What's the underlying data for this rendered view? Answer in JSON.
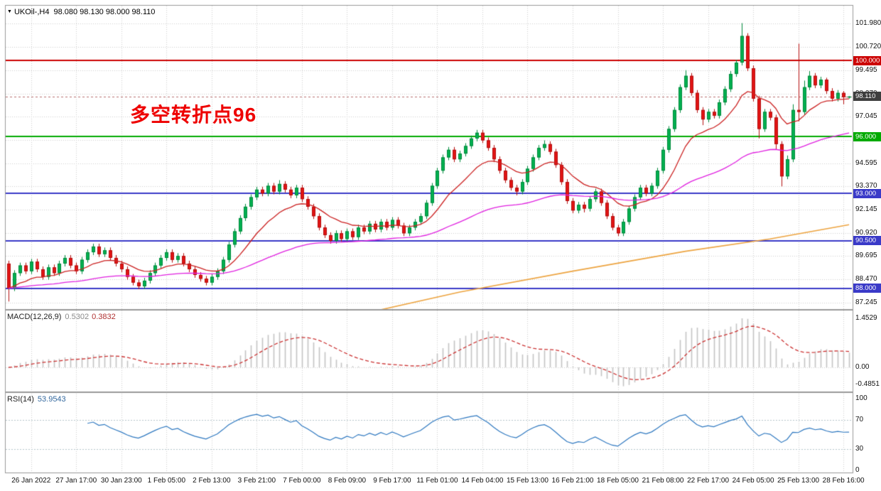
{
  "title": {
    "symbol_timeframe": "UKOil-,H4",
    "ohlc": "98.080 98.130 98.000 98.110"
  },
  "annotation": {
    "text": "多空转折点96",
    "color": "#ee0000"
  },
  "chart_data": {
    "type": "candlestick",
    "symbol": "UKOil-",
    "timeframe": "H4",
    "y_range": [
      86.9,
      102.9
    ],
    "grid": true,
    "x_labels": [
      "26 Jan 2022",
      "27 Jan 17:00",
      "30 Jan 23:00",
      "1 Feb 05:00",
      "2 Feb 13:00",
      "3 Feb 21:00",
      "7 Feb 00:00",
      "8 Feb 09:00",
      "9 Feb 17:00",
      "11 Feb 01:00",
      "14 Feb 04:00",
      "15 Feb 13:00",
      "16 Feb 21:00",
      "18 Feb 05:00",
      "21 Feb 08:00",
      "22 Feb 17:00",
      "24 Feb 05:00",
      "25 Feb 13:00",
      "28 Feb 16:00"
    ],
    "y_ticks": {
      "labels": [
        "101.980",
        "100.720",
        "99.495",
        "98.270",
        "97.045",
        "95.820",
        "94.595",
        "93.370",
        "92.145",
        "90.920",
        "89.695",
        "88.470",
        "87.245"
      ],
      "values": [
        101.98,
        100.72,
        99.495,
        98.27,
        97.045,
        95.82,
        94.595,
        93.37,
        92.145,
        90.92,
        89.695,
        88.47,
        87.245
      ]
    },
    "levels": [
      {
        "price": 100.0,
        "label": "100.000",
        "color": "#cc0000"
      },
      {
        "price": 96.0,
        "label": "96.000",
        "color": "#00aa00"
      },
      {
        "price": 93.0,
        "label": "93.000",
        "color": "#3a3ac8"
      },
      {
        "price": 90.5,
        "label": "90.500",
        "color": "#3a3ac8"
      },
      {
        "price": 88.0,
        "label": "88.000",
        "color": "#3a3ac8"
      }
    ],
    "bid": {
      "price": 98.11,
      "label": "98.110",
      "badge_color": "#3e3e3e"
    },
    "overlays": {
      "ma_fast": {
        "type": "ema",
        "period": 13,
        "color": "#cc2222"
      },
      "ma_mid": {
        "type": "ema",
        "period": 60,
        "color": "#e020e0"
      },
      "ma_slow": {
        "color": "#eda440",
        "points": [
          [
            0,
            83.6
          ],
          [
            40,
            85.1
          ],
          [
            62,
            86.6
          ],
          [
            80,
            87.8
          ],
          [
            100,
            88.9
          ],
          [
            120,
            89.95
          ],
          [
            135,
            90.6
          ],
          [
            149,
            91.35
          ]
        ]
      }
    },
    "indicators": {
      "macd": {
        "name": "MACD(12,26,9)",
        "value_main": "0.5302",
        "value_signal": "0.3832",
        "params": [
          12,
          26,
          9
        ],
        "axis_ticks": [
          "1.4529",
          "0.00",
          "-0.4851"
        ]
      },
      "rsi": {
        "name": "RSI(14)",
        "value": "53.9543",
        "period": 14,
        "axis_ticks": [
          "100",
          "70",
          "30",
          "0"
        ],
        "levels": [
          70,
          30
        ]
      }
    },
    "colors": {
      "candle_up": "#00b050",
      "candle_up_border": "#008a3c",
      "candle_down": "#e21414",
      "candle_down_border": "#b40f0f",
      "macd_hist": "#c4c4c4",
      "macd_signal": "#cc3333",
      "rsi_line": "#2e78c0",
      "bid_line": "#b87070",
      "grid": "#d0d0d0",
      "border": "#9a9a9a"
    },
    "candles": [
      [
        89.3,
        89.45,
        87.3,
        88.0
      ],
      [
        88.0,
        88.95,
        87.85,
        88.8
      ],
      [
        88.8,
        89.35,
        88.65,
        89.2
      ],
      [
        89.2,
        89.35,
        88.75,
        88.9
      ],
      [
        88.9,
        89.55,
        88.75,
        89.4
      ],
      [
        89.4,
        89.55,
        88.85,
        89.0
      ],
      [
        89.0,
        89.15,
        88.45,
        88.6
      ],
      [
        88.6,
        89.25,
        88.45,
        89.1
      ],
      [
        89.1,
        89.25,
        88.65,
        88.8
      ],
      [
        88.8,
        89.45,
        88.65,
        89.3
      ],
      [
        89.3,
        89.75,
        89.15,
        89.6
      ],
      [
        89.6,
        89.75,
        89.05,
        89.2
      ],
      [
        89.2,
        89.35,
        88.75,
        88.9
      ],
      [
        88.9,
        89.65,
        88.75,
        89.5
      ],
      [
        89.5,
        90.05,
        89.35,
        89.9
      ],
      [
        89.9,
        90.35,
        89.75,
        90.2
      ],
      [
        90.2,
        90.35,
        89.65,
        89.8
      ],
      [
        89.8,
        90.15,
        89.65,
        90.0
      ],
      [
        90.0,
        90.15,
        89.45,
        89.6
      ],
      [
        89.6,
        89.75,
        89.15,
        89.3
      ],
      [
        89.3,
        89.45,
        88.85,
        89.0
      ],
      [
        89.0,
        89.15,
        88.45,
        88.6
      ],
      [
        88.6,
        88.75,
        88.15,
        88.3
      ],
      [
        88.3,
        88.45,
        87.95,
        88.1
      ],
      [
        88.1,
        88.55,
        87.95,
        88.4
      ],
      [
        88.4,
        88.95,
        88.25,
        88.8
      ],
      [
        88.8,
        89.35,
        88.65,
        89.2
      ],
      [
        89.2,
        89.75,
        89.05,
        89.6
      ],
      [
        89.6,
        90.05,
        89.45,
        89.9
      ],
      [
        89.9,
        90.05,
        89.35,
        89.5
      ],
      [
        89.5,
        89.85,
        89.35,
        89.7
      ],
      [
        89.7,
        89.85,
        89.15,
        89.3
      ],
      [
        89.3,
        89.45,
        88.85,
        89.0
      ],
      [
        89.0,
        89.15,
        88.55,
        88.7
      ],
      [
        88.7,
        88.85,
        88.35,
        88.5
      ],
      [
        88.5,
        88.65,
        88.15,
        88.3
      ],
      [
        88.3,
        88.75,
        88.15,
        88.6
      ],
      [
        88.6,
        89.05,
        88.45,
        88.9
      ],
      [
        88.9,
        89.65,
        88.75,
        89.5
      ],
      [
        89.5,
        90.45,
        89.35,
        90.3
      ],
      [
        90.3,
        91.15,
        90.15,
        91.0
      ],
      [
        91.0,
        91.85,
        90.85,
        91.7
      ],
      [
        91.7,
        92.45,
        91.55,
        92.3
      ],
      [
        92.3,
        92.95,
        92.15,
        92.8
      ],
      [
        92.8,
        93.35,
        92.65,
        93.2
      ],
      [
        93.2,
        93.35,
        92.85,
        93.0
      ],
      [
        93.0,
        93.55,
        92.85,
        93.4
      ],
      [
        93.4,
        93.55,
        92.95,
        93.1
      ],
      [
        93.1,
        93.7,
        92.95,
        93.5
      ],
      [
        93.5,
        93.65,
        93.05,
        93.2
      ],
      [
        93.2,
        93.35,
        92.75,
        92.9
      ],
      [
        92.9,
        93.45,
        92.75,
        93.3
      ],
      [
        93.3,
        93.45,
        92.55,
        92.7
      ],
      [
        92.7,
        92.85,
        92.15,
        92.3
      ],
      [
        92.3,
        92.45,
        91.65,
        91.8
      ],
      [
        91.8,
        91.95,
        91.05,
        91.2
      ],
      [
        91.2,
        91.35,
        90.65,
        90.8
      ],
      [
        90.8,
        90.95,
        90.35,
        90.5
      ],
      [
        90.5,
        91.05,
        90.35,
        90.9
      ],
      [
        90.9,
        91.05,
        90.45,
        90.6
      ],
      [
        90.6,
        91.15,
        90.45,
        91.0
      ],
      [
        91.0,
        91.15,
        90.55,
        90.7
      ],
      [
        90.7,
        91.35,
        90.55,
        91.2
      ],
      [
        91.2,
        91.35,
        90.85,
        91.0
      ],
      [
        91.0,
        91.55,
        90.85,
        91.4
      ],
      [
        91.4,
        91.55,
        90.95,
        91.1
      ],
      [
        91.1,
        91.65,
        90.95,
        91.5
      ],
      [
        91.5,
        91.65,
        91.05,
        91.2
      ],
      [
        91.2,
        91.75,
        91.05,
        91.6
      ],
      [
        91.6,
        91.75,
        91.15,
        91.3
      ],
      [
        91.3,
        91.45,
        90.75,
        90.9
      ],
      [
        90.9,
        91.35,
        90.75,
        91.2
      ],
      [
        91.2,
        91.65,
        91.05,
        91.5
      ],
      [
        91.5,
        91.95,
        91.35,
        91.8
      ],
      [
        91.8,
        92.65,
        91.65,
        92.5
      ],
      [
        92.5,
        93.55,
        92.35,
        93.4
      ],
      [
        93.4,
        94.35,
        93.25,
        94.2
      ],
      [
        94.2,
        95.05,
        94.05,
        94.9
      ],
      [
        94.9,
        95.45,
        94.75,
        95.3
      ],
      [
        95.3,
        95.45,
        94.65,
        94.8
      ],
      [
        94.8,
        95.25,
        94.65,
        95.1
      ],
      [
        95.1,
        95.65,
        94.95,
        95.5
      ],
      [
        95.5,
        96.05,
        95.35,
        95.9
      ],
      [
        95.9,
        96.35,
        95.75,
        96.2
      ],
      [
        96.2,
        96.35,
        95.65,
        95.8
      ],
      [
        95.8,
        95.95,
        95.25,
        95.4
      ],
      [
        95.4,
        95.55,
        94.65,
        94.8
      ],
      [
        94.8,
        94.95,
        94.05,
        94.2
      ],
      [
        94.2,
        94.35,
        93.55,
        93.7
      ],
      [
        93.7,
        93.85,
        93.15,
        93.3
      ],
      [
        93.3,
        93.45,
        92.9,
        93.1
      ],
      [
        93.1,
        93.75,
        92.95,
        93.6
      ],
      [
        93.6,
        94.45,
        93.45,
        94.3
      ],
      [
        94.3,
        95.05,
        94.15,
        94.9
      ],
      [
        94.9,
        95.55,
        94.75,
        95.4
      ],
      [
        95.4,
        95.8,
        95.25,
        95.6
      ],
      [
        95.6,
        95.75,
        95.05,
        95.2
      ],
      [
        95.2,
        95.35,
        94.35,
        94.5
      ],
      [
        94.5,
        94.65,
        93.45,
        93.6
      ],
      [
        93.6,
        93.75,
        92.45,
        92.6
      ],
      [
        92.6,
        92.75,
        91.95,
        92.1
      ],
      [
        92.1,
        92.55,
        91.95,
        92.4
      ],
      [
        92.4,
        92.55,
        92.0,
        92.2
      ],
      [
        92.2,
        92.85,
        92.05,
        92.7
      ],
      [
        92.7,
        93.25,
        92.55,
        93.1
      ],
      [
        93.1,
        93.25,
        92.35,
        92.5
      ],
      [
        92.5,
        92.65,
        91.65,
        91.8
      ],
      [
        91.8,
        91.95,
        91.05,
        91.2
      ],
      [
        91.2,
        91.35,
        90.75,
        90.9
      ],
      [
        90.9,
        91.65,
        90.75,
        91.5
      ],
      [
        91.5,
        92.35,
        91.35,
        92.2
      ],
      [
        92.2,
        92.95,
        92.05,
        92.8
      ],
      [
        92.8,
        93.45,
        92.65,
        93.3
      ],
      [
        93.3,
        93.45,
        92.85,
        93.0
      ],
      [
        93.0,
        93.55,
        92.85,
        93.4
      ],
      [
        93.4,
        94.35,
        93.25,
        94.2
      ],
      [
        94.2,
        95.45,
        94.05,
        95.3
      ],
      [
        95.3,
        96.55,
        95.15,
        96.4
      ],
      [
        96.4,
        97.55,
        96.25,
        97.4
      ],
      [
        97.4,
        98.75,
        97.25,
        98.6
      ],
      [
        98.6,
        99.5,
        98.45,
        99.2
      ],
      [
        99.2,
        99.35,
        98.15,
        98.3
      ],
      [
        98.3,
        98.45,
        97.25,
        97.4
      ],
      [
        97.4,
        97.55,
        96.6,
        96.9
      ],
      [
        96.9,
        97.45,
        96.75,
        97.3
      ],
      [
        97.3,
        97.45,
        96.95,
        97.1
      ],
      [
        97.1,
        97.95,
        96.95,
        97.8
      ],
      [
        97.8,
        98.65,
        97.65,
        98.5
      ],
      [
        98.5,
        99.45,
        98.35,
        99.3
      ],
      [
        99.3,
        100.05,
        99.15,
        99.9
      ],
      [
        99.9,
        101.98,
        99.75,
        101.3
      ],
      [
        101.3,
        101.45,
        99.45,
        99.6
      ],
      [
        99.6,
        99.75,
        97.85,
        98.0
      ],
      [
        98.0,
        98.15,
        95.9,
        96.4
      ],
      [
        96.4,
        97.45,
        96.25,
        97.3
      ],
      [
        97.3,
        97.45,
        96.85,
        97.0
      ],
      [
        97.0,
        97.15,
        95.3,
        95.6
      ],
      [
        95.6,
        95.75,
        93.37,
        93.9
      ],
      [
        93.9,
        95.0,
        93.75,
        94.8
      ],
      [
        94.8,
        97.7,
        94.65,
        97.4
      ],
      [
        97.4,
        100.9,
        96.8,
        97.3
      ],
      [
        97.3,
        98.95,
        97.15,
        98.6
      ],
      [
        98.6,
        99.45,
        98.45,
        99.2
      ],
      [
        99.2,
        99.35,
        98.55,
        98.7
      ],
      [
        98.7,
        99.15,
        98.55,
        99.0
      ],
      [
        99.0,
        99.1,
        98.25,
        98.4
      ],
      [
        98.4,
        98.55,
        97.85,
        98.0
      ],
      [
        98.0,
        98.45,
        97.85,
        98.3
      ],
      [
        98.3,
        98.4,
        97.7,
        98.08
      ],
      [
        98.08,
        98.13,
        98.0,
        98.11
      ]
    ]
  }
}
